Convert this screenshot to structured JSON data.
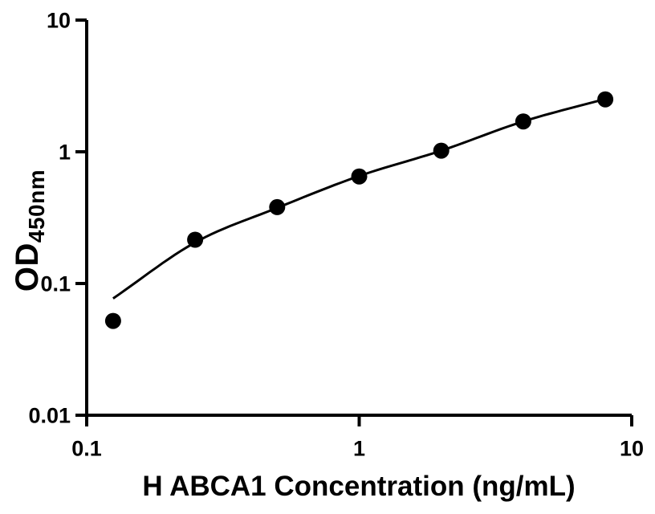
{
  "chart_data": {
    "type": "scatter",
    "title": "",
    "x_label": "H ABCA1 Concentration (ng/mL)",
    "y_label_main": "OD",
    "y_label_sub": "450nm",
    "x_scale": "log",
    "y_scale": "log",
    "x_range": [
      0.1,
      10
    ],
    "y_range": [
      0.01,
      10
    ],
    "grid": false,
    "legend": null,
    "x_ticks": [
      {
        "value": 0.1,
        "label": "0.1"
      },
      {
        "value": 1,
        "label": "1"
      },
      {
        "value": 10,
        "label": "10"
      }
    ],
    "y_ticks": [
      {
        "value": 10,
        "label": "10"
      },
      {
        "value": 1,
        "label": "1"
      },
      {
        "value": 0.1,
        "label": "0.1"
      },
      {
        "value": 0.01,
        "label": "0.01"
      }
    ],
    "series": [
      {
        "name": "standard-points",
        "marker": "filled-circle",
        "x": [
          0.125,
          0.25,
          0.5,
          1,
          2,
          4,
          8
        ],
        "y": [
          0.052,
          0.215,
          0.38,
          0.65,
          1.02,
          1.7,
          2.5
        ]
      }
    ],
    "fit_curve": {
      "name": "fitted-standard-curve",
      "x": [
        0.125,
        0.25,
        0.5,
        1,
        2,
        4,
        8
      ],
      "y": [
        0.077,
        0.205,
        0.375,
        0.655,
        1.02,
        1.7,
        2.52
      ]
    },
    "colors": {
      "marker": "#000000",
      "line": "#000000",
      "axis": "#000000",
      "background": "#ffffff"
    }
  }
}
